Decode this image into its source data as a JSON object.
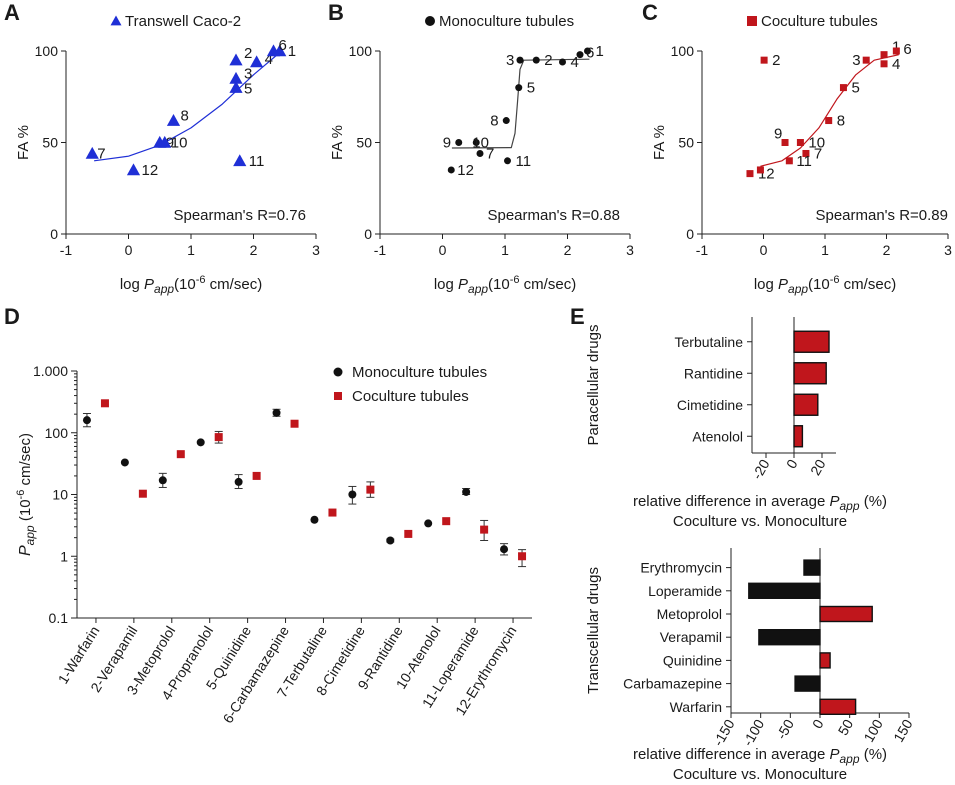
{
  "panels": {
    "A": {
      "letter": "A"
    },
    "B": {
      "letter": "B"
    },
    "C": {
      "letter": "C"
    },
    "D": {
      "letter": "D"
    },
    "E": {
      "letter": "E"
    }
  },
  "colors": {
    "blue": "#1f2fd6",
    "black": "#111111",
    "red": "#c0161c"
  },
  "chart_data": [
    {
      "id": "A",
      "type": "scatter",
      "legend": "Transwell Caco-2",
      "marker": "triangle",
      "color": "#1f2fd6",
      "xlabel_prefix": "log ",
      "xlabel_var": "P",
      "xlabel_sub": "app",
      "xlabel_unit": "(10",
      "xlabel_exp": "-6",
      "xlabel_tail": " cm/sec)",
      "ylabel": "FA %",
      "xlim": [
        -1,
        3
      ],
      "ylim": [
        0,
        100
      ],
      "xticks": [
        "-1",
        "0",
        "1",
        "2",
        "3"
      ],
      "yticks": [
        "0",
        "50",
        "100"
      ],
      "annotation": "Spearman's R=0.76",
      "points": [
        {
          "label": "1",
          "x": 2.42,
          "y": 100
        },
        {
          "label": "2",
          "x": 1.72,
          "y": 95
        },
        {
          "label": "3",
          "x": 1.72,
          "y": 85
        },
        {
          "label": "4",
          "x": 2.05,
          "y": 94
        },
        {
          "label": "5",
          "x": 1.72,
          "y": 80
        },
        {
          "label": "6",
          "x": 2.32,
          "y": 100
        },
        {
          "label": "7",
          "x": -0.58,
          "y": 44
        },
        {
          "label": "8",
          "x": 0.72,
          "y": 62
        },
        {
          "label": "9",
          "x": 0.5,
          "y": 50
        },
        {
          "label": "10",
          "x": 0.58,
          "y": 50
        },
        {
          "label": "11",
          "x": 1.78,
          "y": 40
        },
        {
          "label": "12",
          "x": 0.08,
          "y": 35
        }
      ],
      "fit": [
        [
          -0.55,
          40
        ],
        [
          0,
          42.5
        ],
        [
          0.5,
          48.5
        ],
        [
          1,
          58
        ],
        [
          1.5,
          71
        ],
        [
          2,
          87
        ],
        [
          2.45,
          100
        ]
      ]
    },
    {
      "id": "B",
      "type": "scatter",
      "legend": "Monoculture tubules",
      "marker": "circle",
      "color": "#111111",
      "xlabel_prefix": "log ",
      "xlabel_var": "P",
      "xlabel_sub": "app",
      "xlabel_unit": "(10",
      "xlabel_exp": "-6",
      "xlabel_tail": " cm/sec)",
      "ylabel": "FA %",
      "xlim": [
        -1,
        3
      ],
      "ylim": [
        0,
        100
      ],
      "xticks": [
        "-1",
        "0",
        "1",
        "2",
        "3"
      ],
      "yticks": [
        "0",
        "50",
        "100"
      ],
      "annotation": "Spearman's R=0.88",
      "points": [
        {
          "label": "1",
          "x": 2.32,
          "y": 100
        },
        {
          "label": "2",
          "x": 1.5,
          "y": 95
        },
        {
          "label": "3",
          "x": 1.24,
          "y": 95
        },
        {
          "label": "4",
          "x": 1.92,
          "y": 94
        },
        {
          "label": "5",
          "x": 1.22,
          "y": 80
        },
        {
          "label": "6",
          "x": 2.2,
          "y": 98
        },
        {
          "label": "7",
          "x": 0.6,
          "y": 44
        },
        {
          "label": "8",
          "x": 1.02,
          "y": 62
        },
        {
          "label": "9",
          "x": 0.26,
          "y": 50
        },
        {
          "label": "10",
          "x": 0.54,
          "y": 50
        },
        {
          "label": "11",
          "x": 1.04,
          "y": 40
        },
        {
          "label": "12",
          "x": 0.14,
          "y": 35
        }
      ],
      "fit": [
        [
          0.15,
          47
        ],
        [
          1.1,
          47.2
        ],
        [
          1.16,
          55
        ],
        [
          1.2,
          72
        ],
        [
          1.24,
          90
        ],
        [
          1.3,
          95
        ],
        [
          2.35,
          95.5
        ]
      ]
    },
    {
      "id": "C",
      "type": "scatter",
      "legend": "Coculture tubules",
      "marker": "square",
      "color": "#c0161c",
      "xlabel_prefix": "log ",
      "xlabel_var": "P",
      "xlabel_sub": "app",
      "xlabel_unit": "(10",
      "xlabel_exp": "-6",
      "xlabel_tail": " cm/sec)",
      "ylabel": "FA %",
      "xlim": [
        -1,
        3
      ],
      "ylim": [
        0,
        100
      ],
      "xticks": [
        "-1",
        "0",
        "1",
        "2",
        "3"
      ],
      "yticks": [
        "0",
        "50",
        "100"
      ],
      "annotation": "Spearman's R=0.89",
      "points": [
        {
          "label": "1",
          "x": 1.96,
          "y": 98
        },
        {
          "label": "2",
          "x": 0.01,
          "y": 95
        },
        {
          "label": "3",
          "x": 1.67,
          "y": 95
        },
        {
          "label": "4",
          "x": 1.96,
          "y": 93
        },
        {
          "label": "5",
          "x": 1.3,
          "y": 80
        },
        {
          "label": "6",
          "x": 2.16,
          "y": 100
        },
        {
          "label": "7",
          "x": 0.69,
          "y": 44
        },
        {
          "label": "8",
          "x": 1.06,
          "y": 62
        },
        {
          "label": "9",
          "x": 0.35,
          "y": 50
        },
        {
          "label": "10",
          "x": 0.6,
          "y": 50
        },
        {
          "label": "11",
          "x": 0.42,
          "y": 40
        },
        {
          "label": "12",
          "x": -0.22,
          "y": 33
        }
      ],
      "extra_points": [
        {
          "x": -0.05,
          "y": 35
        }
      ],
      "fit": [
        [
          -0.05,
          37
        ],
        [
          0.3,
          40
        ],
        [
          0.6,
          47
        ],
        [
          0.9,
          58
        ],
        [
          1.2,
          74
        ],
        [
          1.5,
          87
        ],
        [
          1.8,
          95
        ],
        [
          2.2,
          98
        ]
      ]
    },
    {
      "id": "D",
      "type": "scatter",
      "ylabel_var": "P",
      "ylabel_sub": "app",
      "ylabel_unit": " (10",
      "ylabel_exp": "-6",
      "ylabel_tail": " cm/sec)",
      "yscale": "log",
      "ylim": [
        0.1,
        1000
      ],
      "yticks": [
        {
          "v": 0.1,
          "label": "0.1"
        },
        {
          "v": 1,
          "label": "1"
        },
        {
          "v": 10,
          "label": "10"
        },
        {
          "v": 100,
          "label": "100"
        },
        {
          "v": 1000,
          "label": "1.000"
        }
      ],
      "categories": [
        "1-Warfarin",
        "2-Verapamil",
        "3-Metoprolol",
        "4-Propranolol",
        "5-Quinidine",
        "6-Carbamazepine",
        "7-Terbutaline",
        "8-Cimetidine",
        "9-Rantidine",
        "10-Atenolol",
        "11-Loperamide",
        "12-Erythromycin"
      ],
      "series": [
        {
          "name": "Monoculture tubules",
          "marker": "circle",
          "color": "#111111",
          "values": [
            160,
            33,
            17,
            70,
            16,
            210,
            3.9,
            10,
            1.8,
            3.4,
            11,
            1.3
          ],
          "err_low": [
            125,
            33,
            13,
            70,
            12.5,
            185,
            3.9,
            7,
            1.7,
            3.4,
            10,
            1.05
          ],
          "err_high": [
            205,
            33,
            22,
            70,
            21,
            240,
            3.9,
            13.5,
            1.9,
            3.4,
            12.5,
            1.6
          ]
        },
        {
          "name": "Coculture tubules",
          "marker": "square",
          "color": "#c0161c",
          "values": [
            300,
            10.3,
            45,
            85,
            20,
            140,
            5.1,
            12,
            2.3,
            3.7,
            2.7,
            1.0
          ],
          "err_low": [
            300,
            10.3,
            45,
            68,
            20,
            140,
            5.1,
            9,
            2.3,
            3.7,
            1.8,
            0.68
          ],
          "err_high": [
            300,
            10.3,
            45,
            105,
            20,
            140,
            5.1,
            16,
            2.3,
            3.7,
            3.8,
            1.28
          ]
        }
      ]
    },
    {
      "id": "E1",
      "type": "bar",
      "orientation": "horizontal",
      "group_label": "Paracellular drugs",
      "categories": [
        "Terbutaline",
        "Rantidine",
        "Cimetidine",
        "Atenolol"
      ],
      "values": [
        25,
        23,
        17,
        6
      ],
      "xlim": [
        -30,
        30
      ],
      "xticks": [
        {
          "v": -20,
          "label": "-20"
        },
        {
          "v": 0,
          "label": "0"
        },
        {
          "v": 20,
          "label": "20"
        }
      ],
      "xlabel_line1_pre": "relative difference in average ",
      "xlabel_var": "P",
      "xlabel_sub": "app",
      "xlabel_post": " (%)",
      "xlabel_line2": "Coculture vs. Monoculture"
    },
    {
      "id": "E2",
      "type": "bar",
      "orientation": "horizontal",
      "group_label": "Transcellular drugs",
      "categories": [
        "Erythromycin",
        "Loperamide",
        "Metoprolol",
        "Verapamil",
        "Quinidine",
        "Carbamazepine",
        "Warfarin"
      ],
      "values": [
        -27,
        -120,
        88,
        -103,
        17,
        -42,
        60
      ],
      "xlim": [
        -160,
        160
      ],
      "xticks": [
        {
          "v": -150,
          "label": "-150"
        },
        {
          "v": -100,
          "label": "-100"
        },
        {
          "v": -50,
          "label": "-50"
        },
        {
          "v": 0,
          "label": "0"
        },
        {
          "v": 50,
          "label": "50"
        },
        {
          "v": 100,
          "label": "100"
        },
        {
          "v": 150,
          "label": "150"
        }
      ],
      "xlabel_line1_pre": "relative difference in average ",
      "xlabel_var": "P",
      "xlabel_sub": "app",
      "xlabel_post": " (%)",
      "xlabel_line2": "Coculture vs. Monoculture"
    }
  ]
}
